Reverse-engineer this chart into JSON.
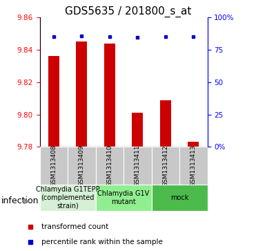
{
  "title": "GDS5635 / 201800_s_at",
  "samples": [
    "GSM1313408",
    "GSM1313409",
    "GSM1313410",
    "GSM1313411",
    "GSM1313412",
    "GSM1313413"
  ],
  "red_values": [
    9.836,
    9.845,
    9.844,
    9.801,
    9.809,
    9.783
  ],
  "blue_values_pct": [
    85,
    86,
    85.5,
    84.5,
    85,
    85
  ],
  "ylim_left": [
    9.78,
    9.86
  ],
  "ylim_right": [
    0,
    100
  ],
  "yticks_left": [
    9.78,
    9.8,
    9.82,
    9.84,
    9.86
  ],
  "yticks_right": [
    0,
    25,
    50,
    75,
    100
  ],
  "grid_ticks": [
    9.8,
    9.82,
    9.84
  ],
  "groups": [
    {
      "label": "Chlamydia G1TEPP\n(complemented\nstrain)",
      "cols": [
        0,
        1
      ],
      "color": "#d5f0d5"
    },
    {
      "label": "Chlamydia G1V\nmutant",
      "cols": [
        2,
        3
      ],
      "color": "#90ee90"
    },
    {
      "label": "mock",
      "cols": [
        4,
        5
      ],
      "color": "#4cbb4c"
    }
  ],
  "infection_label": "infection",
  "legend_red": "transformed count",
  "legend_blue": "percentile rank within the sample",
  "bar_color": "#cc0000",
  "dot_color": "#0000cc",
  "bar_width": 0.4,
  "title_fontsize": 11,
  "tick_fontsize": 7.5,
  "sample_fontsize": 6.5,
  "group_label_fontsize": 7,
  "legend_fontsize": 7.5,
  "infection_fontsize": 9
}
